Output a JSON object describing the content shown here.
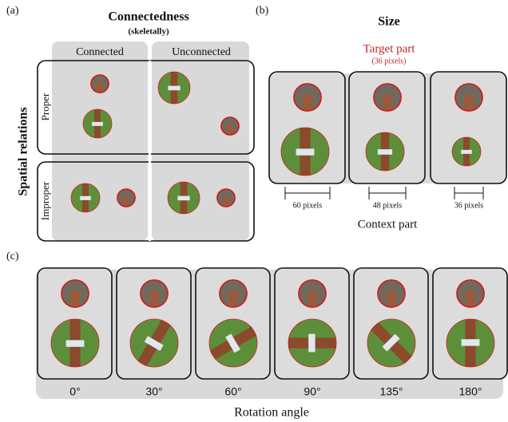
{
  "panel_a": {
    "label": "(a)",
    "title": "Connectedness",
    "subtitle": "(skeletally)",
    "columns": [
      "Connected",
      "Unconnected"
    ],
    "row_axis": "Spatial relations",
    "rows": [
      "Proper",
      "Improper"
    ]
  },
  "panel_b": {
    "label": "(b)",
    "title": "Size",
    "target_title": "Target part",
    "target_size": "(36 pixels)",
    "sizes": [
      "60 pixels",
      "48 pixels",
      "36 pixels"
    ],
    "axis": "Context part"
  },
  "panel_c": {
    "label": "(c)",
    "angles": [
      "0°",
      "30°",
      "60°",
      "90°",
      "135°",
      "180°"
    ],
    "axis": "Rotation angle"
  }
}
